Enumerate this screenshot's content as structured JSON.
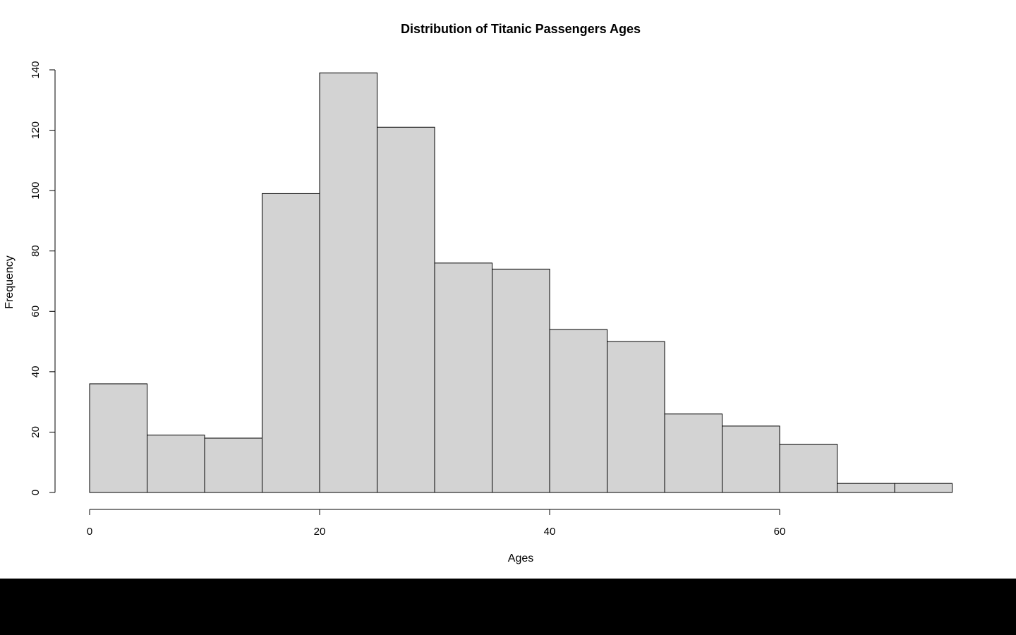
{
  "chart_data": {
    "type": "bar",
    "title": "Distribution of Titanic Passengers Ages",
    "xlabel": "Ages",
    "ylabel": "Frequency",
    "bin_edges": [
      0,
      5,
      10,
      15,
      20,
      25,
      30,
      35,
      40,
      45,
      50,
      55,
      60,
      65,
      70,
      75
    ],
    "values": [
      36,
      19,
      18,
      99,
      139,
      121,
      76,
      74,
      54,
      50,
      26,
      22,
      16,
      3,
      3
    ],
    "xlim": [
      0,
      75
    ],
    "ylim": [
      0,
      140
    ],
    "x_ticks": [
      0,
      20,
      40,
      60
    ],
    "y_ticks": [
      0,
      20,
      40,
      60,
      80,
      100,
      120,
      140
    ],
    "grid": false,
    "bar_color": "#d3d3d3",
    "edge_color": "#000000"
  }
}
